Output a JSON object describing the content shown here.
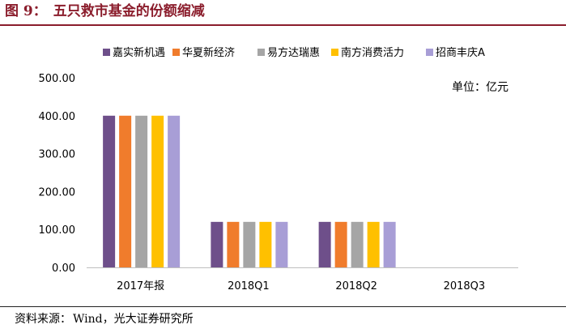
{
  "figure": {
    "label": "图 9：",
    "title": "五只救市基金的份额缩减"
  },
  "source": {
    "label": "资料来源：",
    "text": "Wind，光大证券研究所"
  },
  "chart_data": {
    "type": "bar",
    "unit_label": "单位：亿元",
    "categories": [
      "2017年报",
      "2018Q1",
      "2018Q2",
      "2018Q3"
    ],
    "series": [
      {
        "name": "嘉实新机遇",
        "color": "#6e4f8a",
        "values": [
          400,
          120,
          120,
          0
        ]
      },
      {
        "name": "华夏新经济",
        "color": "#f07c2c",
        "values": [
          400,
          120,
          120,
          0
        ]
      },
      {
        "name": "易方达瑞惠",
        "color": "#a5a5a5",
        "values": [
          400,
          120,
          120,
          0
        ]
      },
      {
        "name": "南方消费活力",
        "color": "#ffc000",
        "values": [
          400,
          120,
          120,
          0
        ]
      },
      {
        "name": "招商丰庆A",
        "color": "#a89ed6",
        "values": [
          400,
          120,
          120,
          0
        ]
      }
    ],
    "ylim": [
      0,
      500
    ],
    "yticks": [
      0,
      100,
      200,
      300,
      400,
      500
    ],
    "ytick_labels": [
      "0.00",
      "100.00",
      "200.00",
      "300.00",
      "400.00",
      "500.00"
    ],
    "grid": false,
    "legend_position": "top"
  }
}
